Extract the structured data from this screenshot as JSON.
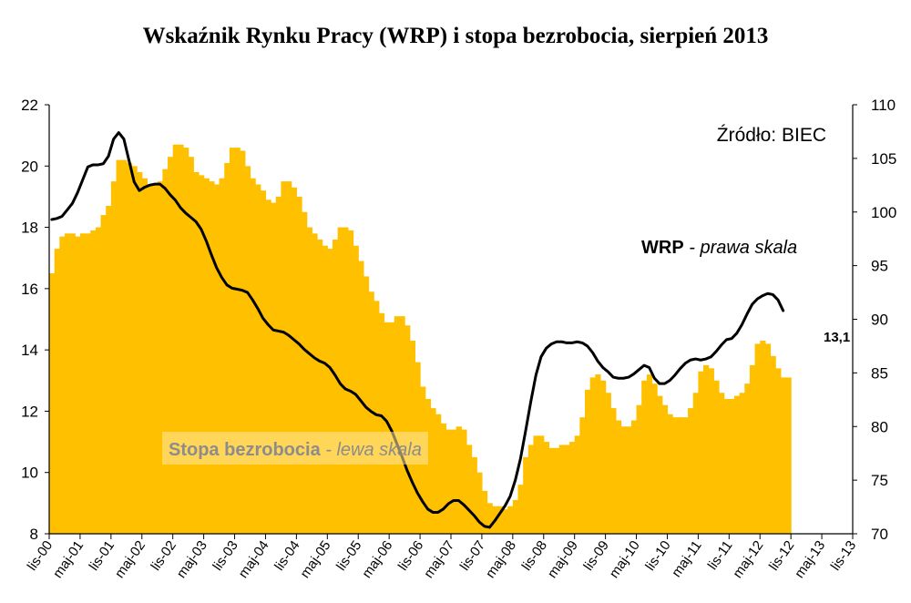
{
  "chart_data": {
    "type": "bar+line",
    "title": "Wskaźnik Rynku Pracy (WRP) i stopa bezrobocia, sierpień 2013",
    "source": "Źródło: BIEC",
    "x_tick_labels": [
      "lis-00",
      "maj-01",
      "lis-01",
      "maj-02",
      "lis-02",
      "maj-03",
      "lis-03",
      "maj-04",
      "lis-04",
      "maj-05",
      "lis-05",
      "maj-06",
      "lis-06",
      "maj-07",
      "lis-07",
      "maj-08",
      "lis-08",
      "maj-09",
      "lis-09",
      "maj-10",
      "lis-10",
      "maj-11",
      "lis-11",
      "maj-12",
      "lis-12",
      "maj-13",
      "lis-13"
    ],
    "y_left": {
      "ylim": [
        8,
        22
      ],
      "ticks": [
        "8",
        "10",
        "12",
        "14",
        "16",
        "18",
        "20",
        "22"
      ]
    },
    "y_right": {
      "ylim": [
        70,
        110
      ],
      "ticks": [
        "70",
        "75",
        "80",
        "85",
        "90",
        "95",
        "100",
        "105",
        "110"
      ]
    },
    "bar_annotation": {
      "bold": "Stopa bezrobocia",
      "rest": " - lewa skala"
    },
    "line_annotation": {
      "bold": "WRP",
      "rest": " - prawa skala"
    },
    "last_value_label": "13,1",
    "colors": {
      "bars": "#FFC000",
      "line": "#000000"
    },
    "series": [
      {
        "name": "Stopa bezrobocia",
        "axis": "left",
        "type": "bar",
        "start": "2000-11",
        "values": [
          16.5,
          17.3,
          17.7,
          17.8,
          17.8,
          17.7,
          17.8,
          17.8,
          17.9,
          18.0,
          18.4,
          18.7,
          19.5,
          20.2,
          20.2,
          20.1,
          20.0,
          19.8,
          19.6,
          19.4,
          19.4,
          19.5,
          19.9,
          20.3,
          20.7,
          20.7,
          20.6,
          20.3,
          19.8,
          19.7,
          19.6,
          19.5,
          19.4,
          19.6,
          20.1,
          20.6,
          20.6,
          20.5,
          20.0,
          19.6,
          19.4,
          19.2,
          18.9,
          18.8,
          19.0,
          19.5,
          19.5,
          19.3,
          19.0,
          18.5,
          18.0,
          17.8,
          17.6,
          17.4,
          17.3,
          17.6,
          18.0,
          18.0,
          17.9,
          17.4,
          16.9,
          16.4,
          15.9,
          15.6,
          15.2,
          14.9,
          14.9,
          15.1,
          15.1,
          14.8,
          14.3,
          13.6,
          12.8,
          12.4,
          12.1,
          11.9,
          11.6,
          11.4,
          11.4,
          11.5,
          11.4,
          10.9,
          10.5,
          10.0,
          9.4,
          9.0,
          8.9,
          8.9,
          8.8,
          8.9,
          9.1,
          9.6,
          10.5,
          10.9,
          11.2,
          11.2,
          11.0,
          10.8,
          10.8,
          10.9,
          10.9,
          11.0,
          11.2,
          11.8,
          12.7,
          13.1,
          13.2,
          13.0,
          12.6,
          12.1,
          11.7,
          11.5,
          11.5,
          11.7,
          12.2,
          13.0,
          13.2,
          12.9,
          12.5,
          12.2,
          11.9,
          11.8,
          11.8,
          11.8,
          12.1,
          12.6,
          13.3,
          13.5,
          13.4,
          13.0,
          12.6,
          12.4,
          12.4,
          12.5,
          12.6,
          12.9,
          13.5,
          14.2,
          14.3,
          14.2,
          13.8,
          13.4,
          13.1,
          13.1
        ]
      },
      {
        "name": "WRP",
        "axis": "right",
        "type": "line",
        "start": "2000-11",
        "values": [
          99.3,
          99.4,
          99.6,
          100.2,
          100.8,
          101.8,
          103.0,
          104.2,
          104.4,
          104.4,
          104.5,
          105.2,
          106.8,
          107.4,
          106.8,
          104.8,
          102.8,
          102.0,
          102.3,
          102.5,
          102.6,
          102.6,
          102.2,
          101.6,
          101.1,
          100.4,
          99.9,
          99.5,
          99.1,
          98.4,
          97.3,
          96.0,
          94.8,
          93.9,
          93.2,
          92.9,
          92.8,
          92.7,
          92.5,
          91.8,
          91.0,
          90.1,
          89.5,
          89.0,
          88.9,
          88.8,
          88.5,
          88.1,
          87.7,
          87.2,
          86.8,
          86.4,
          86.1,
          85.9,
          85.5,
          84.8,
          84.0,
          83.5,
          83.3,
          83.0,
          82.4,
          81.8,
          81.4,
          81.1,
          81.0,
          80.5,
          79.6,
          78.4,
          77.2,
          75.9,
          74.8,
          73.8,
          73.0,
          72.3,
          72.0,
          72.0,
          72.3,
          72.8,
          73.1,
          73.1,
          72.7,
          72.2,
          71.7,
          71.1,
          70.7,
          70.6,
          71.2,
          71.9,
          72.6,
          73.5,
          75.0,
          77.0,
          79.6,
          82.3,
          84.8,
          86.5,
          87.3,
          87.7,
          87.9,
          87.9,
          87.8,
          87.8,
          87.9,
          87.8,
          87.5,
          86.9,
          86.1,
          85.5,
          85.1,
          84.6,
          84.5,
          84.5,
          84.6,
          84.9,
          85.3,
          85.7,
          85.5,
          84.5,
          84.0,
          84.0,
          84.3,
          84.8,
          85.4,
          85.9,
          86.2,
          86.3,
          86.2,
          86.3,
          86.5,
          87.0,
          87.6,
          88.1,
          88.2,
          88.7,
          89.5,
          90.5,
          91.4,
          91.9,
          92.2,
          92.4,
          92.3,
          91.8,
          90.8
        ]
      }
    ]
  }
}
